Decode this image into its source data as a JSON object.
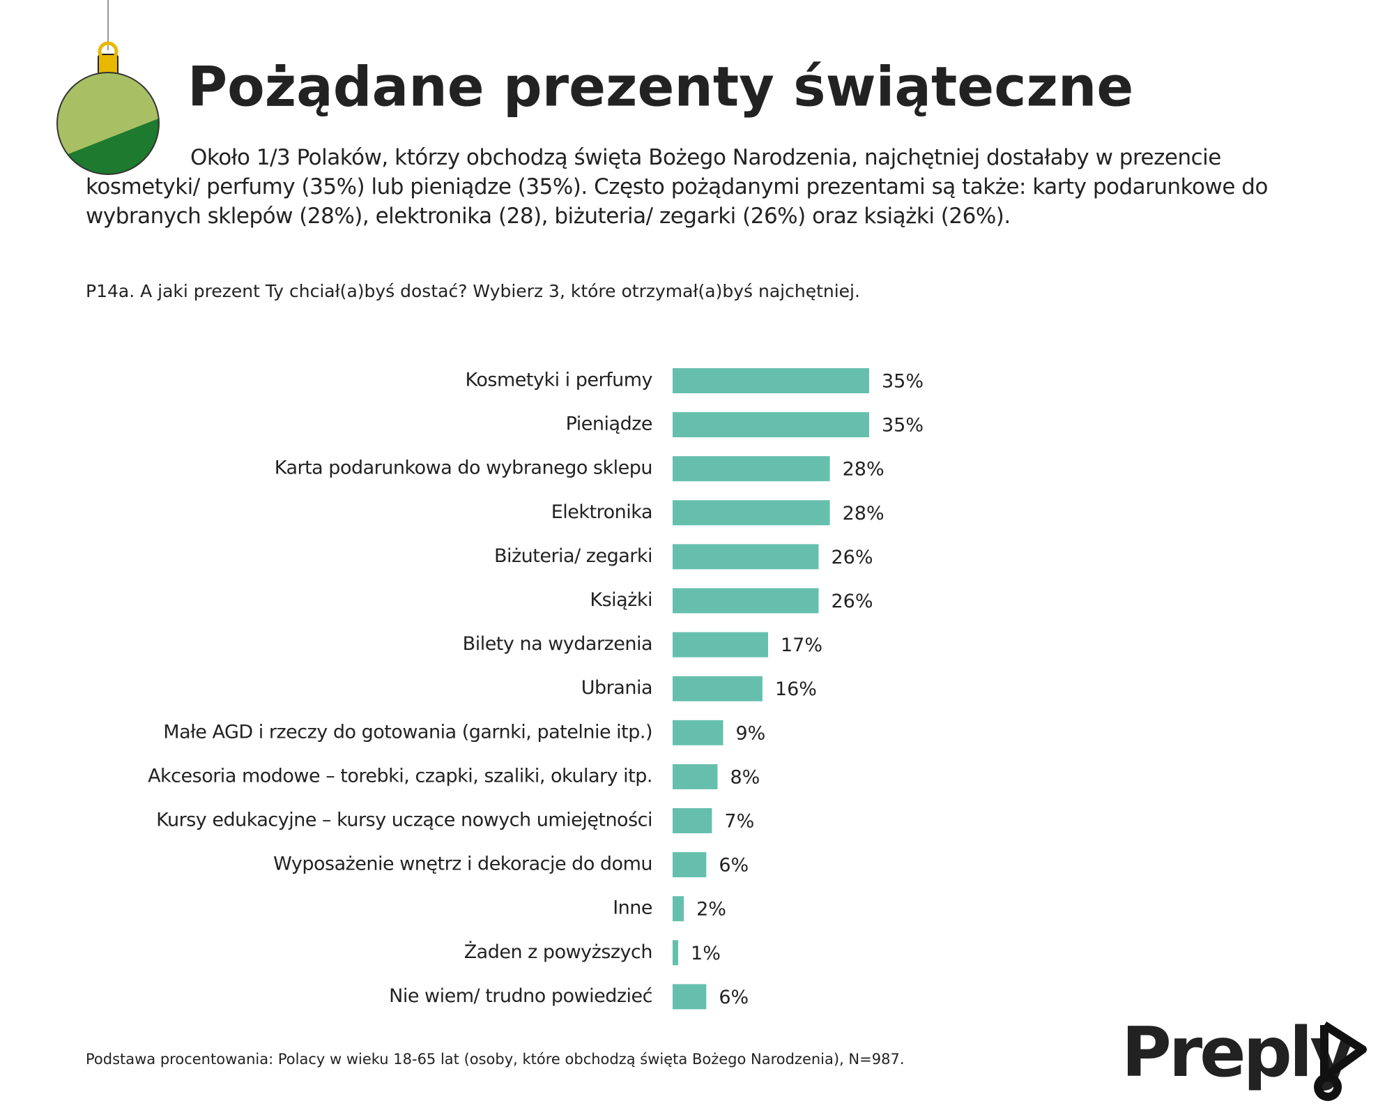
{
  "chart_data": {
    "type": "bar",
    "orientation": "horizontal",
    "title": "Pożądane prezenty świąteczne",
    "subtitle": "Około 1/3 Polaków, którzy obchodzą  święta Bożego Narodzenia, najchętniej dostałaby w prezencie kosmetyki/ perfumy (35%) lub pieniądze (35%). Często pożądanymi prezentami są także: karty podarunkowe do wybranych sklepów (28%), elektronika (28), biżuteria/ zegarki (26%) oraz książki (26%).",
    "question": "P14a. A jaki prezent Ty chciał(a)byś dostać? Wybierz 3, które otrzymał(a)byś najchętniej.",
    "categories": [
      "Kosmetyki i perfumy",
      "Pieniądze",
      "Karta podarunkowa do wybranego sklepu",
      "Elektronika",
      "Biżuteria/ zegarki",
      "Książki",
      "Bilety na wydarzenia",
      "Ubrania",
      "Małe AGD i rzeczy do gotowania (garnki, patelnie itp.)",
      "Akcesoria modowe – torebki, czapki, szaliki, okulary itp.",
      "Kursy edukacyjne – kursy uczące nowych umiejętności",
      "Wyposażenie wnętrz i dekoracje do domu",
      "Inne",
      "Żaden z powyższych",
      "Nie wiem/ trudno powiedzieć"
    ],
    "values": [
      35,
      35,
      28,
      28,
      26,
      26,
      17,
      16,
      9,
      8,
      7,
      6,
      2,
      1,
      6
    ],
    "value_labels": [
      "35%",
      "35%",
      "28%",
      "28%",
      "26%",
      "26%",
      "17%",
      "16%",
      "9%",
      "8%",
      "7%",
      "6%",
      "2%",
      "1%",
      "6%"
    ],
    "color": "#66bfad",
    "xlim": [
      0,
      35
    ],
    "footnote": "Podstawa procentowania: Polacy w wieku  18-65 lat (osoby, które obchodzą święta Bożego Narodzenia), N=987.",
    "brand": "Preply"
  }
}
